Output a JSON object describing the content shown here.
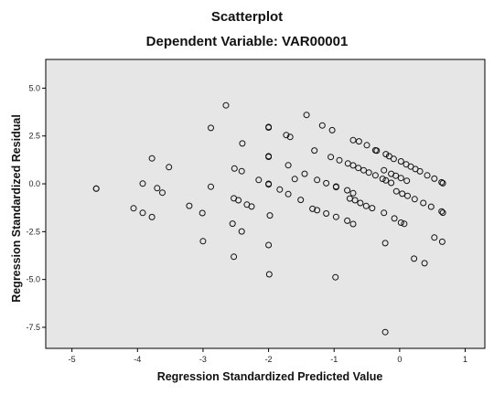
{
  "chart_data": {
    "type": "scatter",
    "title": "Scatterplot",
    "subtitle": "Dependent Variable: VAR00001",
    "xlabel": "Regression Standardized Predicted Value",
    "ylabel": "Regression Standardized Residual",
    "xlim": [
      -5.4,
      1.3
    ],
    "ylim": [
      -8.6,
      6.5
    ],
    "xticks": [
      -5,
      -4,
      -3,
      -2,
      -1,
      0,
      1
    ],
    "yticks": [
      5.0,
      2.5,
      0.0,
      -2.5,
      -5.0,
      -7.5
    ],
    "xtick_labels": [
      "-5",
      "-4",
      "-3",
      "-2",
      "-1",
      "0",
      "1"
    ],
    "ytick_labels": [
      "5.0",
      "2.5",
      "0.0",
      "-2.5",
      "-5.0",
      "-7.5"
    ],
    "grid": false,
    "background_color": "#e6e6e6",
    "marker": "open-circle",
    "points": [
      [
        -4.63,
        -0.25
      ],
      [
        -4.63,
        -0.25
      ],
      [
        -3.92,
        0.01
      ],
      [
        -3.78,
        1.33
      ],
      [
        -3.7,
        -0.23
      ],
      [
        -3.52,
        0.87
      ],
      [
        -3.62,
        -0.46
      ],
      [
        -4.06,
        -1.28
      ],
      [
        -3.92,
        -1.52
      ],
      [
        -3.78,
        -1.74
      ],
      [
        -3.21,
        -1.15
      ],
      [
        -3.01,
        -1.53
      ],
      [
        -3.0,
        -3.0
      ],
      [
        -2.88,
        -0.15
      ],
      [
        -2.88,
        2.92
      ],
      [
        -2.65,
        4.1
      ],
      [
        -2.52,
        0.8
      ],
      [
        -2.41,
        0.66
      ],
      [
        -2.53,
        -0.76
      ],
      [
        -2.46,
        -0.86
      ],
      [
        -2.33,
        -1.09
      ],
      [
        -2.26,
        -1.19
      ],
      [
        -2.55,
        -2.08
      ],
      [
        -2.41,
        -2.49
      ],
      [
        -2.53,
        -3.81
      ],
      [
        -2.4,
        2.11
      ],
      [
        -2.0,
        2.97
      ],
      [
        -2.0,
        2.94
      ],
      [
        -2.0,
        1.44
      ],
      [
        -2.0,
        1.41
      ],
      [
        -2.0,
        0.0
      ],
      [
        -2.0,
        -0.03
      ],
      [
        -1.98,
        -1.65
      ],
      [
        -2.0,
        -3.2
      ],
      [
        -1.99,
        -4.73
      ],
      [
        -2.15,
        0.2
      ],
      [
        -1.83,
        -0.3
      ],
      [
        -1.73,
        2.55
      ],
      [
        -1.67,
        2.45
      ],
      [
        -1.7,
        0.97
      ],
      [
        -1.7,
        -0.54
      ],
      [
        -1.6,
        0.25
      ],
      [
        -1.51,
        -0.84
      ],
      [
        -1.42,
        3.6
      ],
      [
        -1.45,
        0.52
      ],
      [
        -1.33,
        -1.31
      ],
      [
        -1.3,
        1.74
      ],
      [
        -1.18,
        3.05
      ],
      [
        -1.03,
        2.8
      ],
      [
        -0.98,
        -4.88
      ],
      [
        -1.26,
        0.2
      ],
      [
        -1.12,
        0.03
      ],
      [
        -0.97,
        -0.14
      ],
      [
        -0.97,
        -0.17
      ],
      [
        -0.8,
        -0.34
      ],
      [
        -0.71,
        -0.49
      ],
      [
        -1.26,
        -1.38
      ],
      [
        -1.12,
        -1.55
      ],
      [
        -0.97,
        -1.73
      ],
      [
        -0.8,
        -1.93
      ],
      [
        -0.71,
        -2.1
      ],
      [
        -1.05,
        1.4
      ],
      [
        -0.92,
        1.23
      ],
      [
        -0.79,
        1.06
      ],
      [
        -0.71,
        0.96
      ],
      [
        -0.63,
        0.83
      ],
      [
        -0.55,
        0.71
      ],
      [
        -0.47,
        0.59
      ],
      [
        -0.37,
        0.44
      ],
      [
        -0.26,
        0.26
      ],
      [
        -0.21,
        0.18
      ],
      [
        -0.13,
        0.05
      ],
      [
        -0.76,
        -0.77
      ],
      [
        -0.68,
        -0.86
      ],
      [
        -0.6,
        -1.0
      ],
      [
        -0.51,
        -1.16
      ],
      [
        -0.42,
        -1.27
      ],
      [
        -0.24,
        -1.52
      ],
      [
        -0.08,
        -1.81
      ],
      [
        0.02,
        -2.03
      ],
      [
        0.07,
        -2.09
      ],
      [
        -0.22,
        -3.1
      ],
      [
        -0.71,
        2.28
      ],
      [
        -0.62,
        2.22
      ],
      [
        -0.5,
        2.02
      ],
      [
        -0.37,
        1.75
      ],
      [
        -0.35,
        1.73
      ],
      [
        -0.21,
        1.55
      ],
      [
        -0.16,
        1.44
      ],
      [
        -0.09,
        1.3
      ],
      [
        0.02,
        1.17
      ],
      [
        0.1,
        1.02
      ],
      [
        0.17,
        0.9
      ],
      [
        0.24,
        0.77
      ],
      [
        0.31,
        0.65
      ],
      [
        0.42,
        0.44
      ],
      [
        0.53,
        0.27
      ],
      [
        0.64,
        0.08
      ],
      [
        0.66,
        0.03
      ],
      [
        -0.24,
        0.71
      ],
      [
        -0.13,
        0.52
      ],
      [
        -0.06,
        0.42
      ],
      [
        0.02,
        0.3
      ],
      [
        0.11,
        0.16
      ],
      [
        -0.05,
        -0.39
      ],
      [
        0.04,
        -0.52
      ],
      [
        0.12,
        -0.63
      ],
      [
        0.23,
        -0.8
      ],
      [
        0.36,
        -1.0
      ],
      [
        0.48,
        -1.2
      ],
      [
        0.64,
        -1.44
      ],
      [
        0.66,
        -1.51
      ],
      [
        0.53,
        -2.81
      ],
      [
        0.65,
        -3.03
      ],
      [
        0.22,
        -3.91
      ],
      [
        0.38,
        -4.15
      ],
      [
        -0.22,
        -7.75
      ]
    ]
  }
}
